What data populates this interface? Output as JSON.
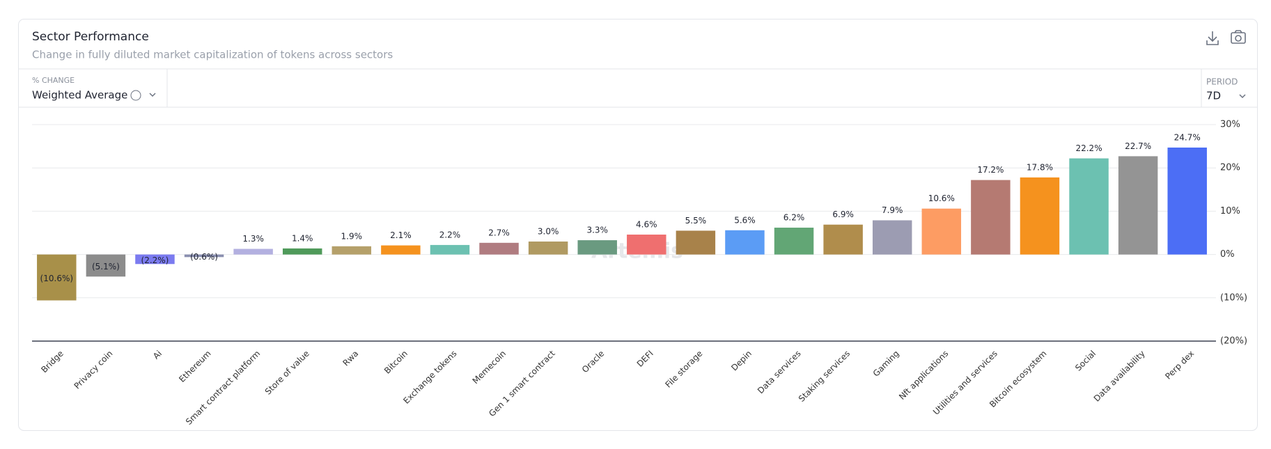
{
  "header": {
    "title": "Sector Performance",
    "subtitle": "Change in fully diluted market capitalization of tokens across sectors"
  },
  "controls": {
    "change_label": "% CHANGE",
    "change_value": "Weighted Average",
    "period_label": "PERIOD",
    "period_value": "7D"
  },
  "watermark": "Artemis",
  "chart_data": {
    "type": "bar",
    "categories": [
      "Bridge",
      "Privacy coin",
      "Ai",
      "Ethereum",
      "Smart contract platform",
      "Store of value",
      "Rwa",
      "Bitcoin",
      "Exchange tokens",
      "Memecoin",
      "Gen 1 smart contract",
      "Oracle",
      "DEFI",
      "File storage",
      "Depin",
      "Data services",
      "Staking services",
      "Gaming",
      "Nft applications",
      "Utilities and services",
      "Bitcoin ecosystem",
      "Social",
      "Data availability",
      "Perp dex"
    ],
    "values": [
      -10.6,
      -5.1,
      -2.2,
      -0.6,
      1.3,
      1.4,
      1.9,
      2.1,
      2.2,
      2.7,
      3.0,
      3.3,
      4.6,
      5.5,
      5.6,
      6.2,
      6.9,
      7.9,
      10.6,
      17.2,
      17.8,
      22.2,
      22.7,
      24.7
    ],
    "value_labels": [
      "(10.6%)",
      "(5.1%)",
      "(2.2%)",
      "(0.6%)",
      "1.3%",
      "1.4%",
      "1.9%",
      "2.1%",
      "2.2%",
      "2.7%",
      "3.0%",
      "3.3%",
      "4.6%",
      "5.5%",
      "5.6%",
      "6.2%",
      "6.9%",
      "7.9%",
      "10.6%",
      "17.2%",
      "17.8%",
      "22.2%",
      "22.7%",
      "24.7%"
    ],
    "colors": [
      "#a89049",
      "#8c8c8c",
      "#7b7bf0",
      "#8a8fb0",
      "#b3b0e0",
      "#4f9a5a",
      "#b5a06a",
      "#f5921e",
      "#6cc1b1",
      "#b07c80",
      "#b09a62",
      "#6a9a80",
      "#ef6f6f",
      "#a8824a",
      "#5b9cf5",
      "#62a675",
      "#b08d4c",
      "#9c9cb2",
      "#fd9c63",
      "#b57a72",
      "#f5921e",
      "#6cc1b1",
      "#949494",
      "#4c6ef5"
    ],
    "ylim": [
      -20,
      30
    ],
    "yticks": [
      {
        "value": -20,
        "label": "(20%)"
      },
      {
        "value": -10,
        "label": "(10%)"
      },
      {
        "value": 0,
        "label": "0%"
      },
      {
        "value": 10,
        "label": "10%"
      },
      {
        "value": 20,
        "label": "20%"
      },
      {
        "value": 30,
        "label": "30%"
      }
    ],
    "grid": true
  }
}
